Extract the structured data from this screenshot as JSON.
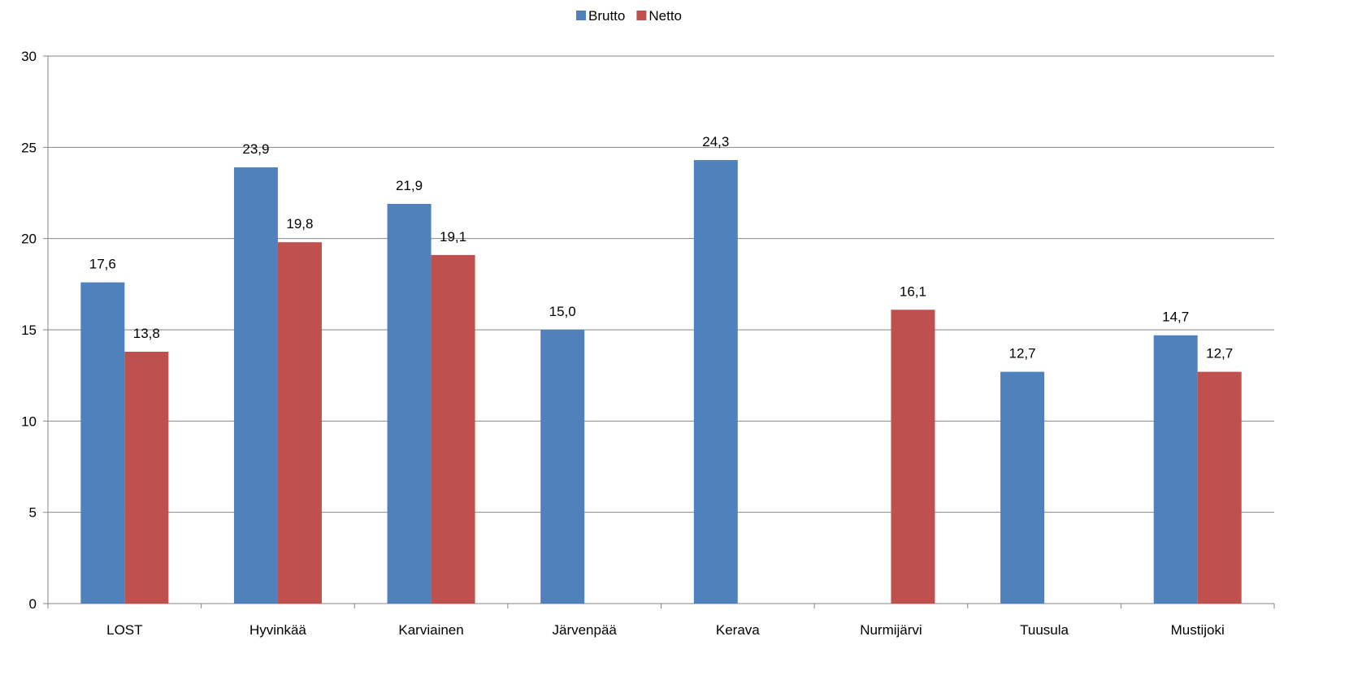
{
  "chart_data": {
    "type": "bar",
    "title": "",
    "xlabel": "",
    "ylabel": "",
    "categories": [
      "LOST",
      "Hyvinkää",
      "Karviainen",
      "Järvenpää",
      "Kerava",
      "Nurmijärvi",
      "Tuusula",
      "Mustijoki"
    ],
    "series": [
      {
        "name": "Brutto",
        "color": "#4F81BD",
        "values": [
          17.6,
          23.9,
          21.9,
          15.0,
          24.3,
          null,
          12.7,
          14.7
        ]
      },
      {
        "name": "Netto",
        "color": "#C0504D",
        "values": [
          13.8,
          19.8,
          19.1,
          null,
          null,
          16.1,
          null,
          12.7
        ]
      }
    ],
    "ylim": [
      0,
      30
    ],
    "yticks": [
      0,
      5,
      10,
      15,
      20,
      25,
      30
    ],
    "grid": true,
    "legend_position": "top"
  }
}
